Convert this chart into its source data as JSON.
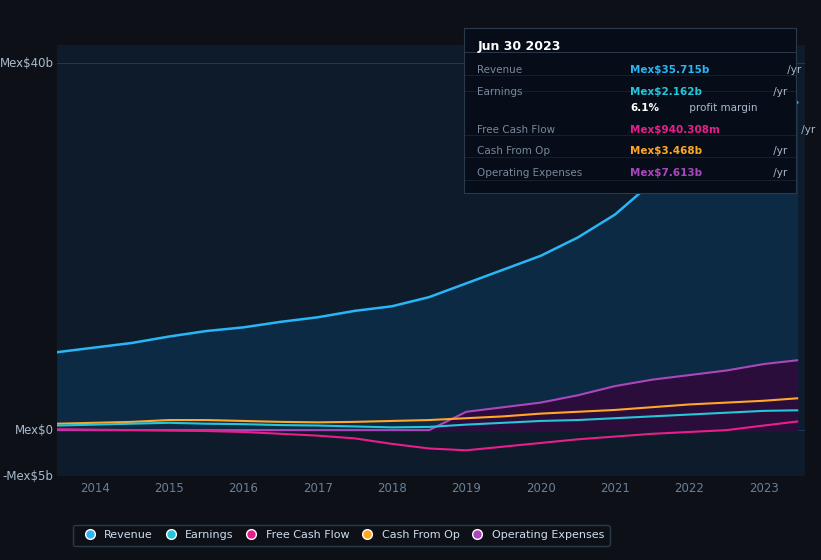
{
  "bg_color": "#0d1117",
  "plot_bg_color": "#0d1b2a",
  "years": [
    2013.5,
    2014.0,
    2014.5,
    2015.0,
    2015.5,
    2016.0,
    2016.5,
    2017.0,
    2017.5,
    2018.0,
    2018.5,
    2019.0,
    2019.5,
    2020.0,
    2020.5,
    2021.0,
    2021.5,
    2022.0,
    2022.5,
    2023.0,
    2023.45
  ],
  "revenue": [
    8.5,
    9.0,
    9.5,
    10.2,
    10.8,
    11.2,
    11.8,
    12.3,
    13.0,
    13.5,
    14.5,
    16.0,
    17.5,
    19.0,
    21.0,
    23.5,
    27.0,
    30.0,
    33.0,
    35.0,
    35.715
  ],
  "earnings": [
    0.5,
    0.6,
    0.7,
    0.8,
    0.7,
    0.65,
    0.55,
    0.5,
    0.4,
    0.3,
    0.35,
    0.6,
    0.8,
    1.0,
    1.1,
    1.3,
    1.5,
    1.7,
    1.9,
    2.1,
    2.162
  ],
  "free_cash_flow": [
    0.1,
    0.05,
    0.0,
    -0.05,
    -0.1,
    -0.2,
    -0.4,
    -0.6,
    -0.9,
    -1.5,
    -2.0,
    -2.2,
    -1.8,
    -1.4,
    -1.0,
    -0.7,
    -0.4,
    -0.2,
    0.0,
    0.5,
    0.94
  ],
  "cash_from_op": [
    0.7,
    0.8,
    0.9,
    1.1,
    1.1,
    1.0,
    0.9,
    0.85,
    0.9,
    1.0,
    1.1,
    1.3,
    1.5,
    1.8,
    2.0,
    2.2,
    2.5,
    2.8,
    3.0,
    3.2,
    3.468
  ],
  "operating_exp": [
    0.0,
    0.0,
    0.0,
    0.0,
    0.0,
    0.0,
    0.0,
    0.0,
    0.0,
    0.0,
    0.0,
    2.0,
    2.5,
    3.0,
    3.8,
    4.8,
    5.5,
    6.0,
    6.5,
    7.2,
    7.613
  ],
  "revenue_color": "#29b6f6",
  "earnings_color": "#26c6da",
  "free_cash_flow_color": "#e91e8c",
  "cash_from_op_color": "#ffa726",
  "operating_exp_color": "#ab47bc",
  "revenue_fill": "#0d2a45",
  "operating_exp_fill": "#2a0d3a",
  "ylim": [
    -5,
    42
  ],
  "xticks": [
    2014,
    2015,
    2016,
    2017,
    2018,
    2019,
    2020,
    2021,
    2022,
    2023
  ],
  "legend_labels": [
    "Revenue",
    "Earnings",
    "Free Cash Flow",
    "Cash From Op",
    "Operating Expenses"
  ],
  "legend_colors": [
    "#29b6f6",
    "#26c6da",
    "#e91e8c",
    "#ffa726",
    "#ab47bc"
  ],
  "info_title": "Jun 30 2023",
  "info_rows": [
    {
      "label": "Revenue",
      "value": "Mex$35.715b",
      "suffix": "/yr",
      "color": "#29b6f6"
    },
    {
      "label": "Earnings",
      "value": "Mex$2.162b",
      "suffix": "/yr",
      "color": "#26c6da"
    },
    {
      "label": "",
      "value": "6.1%",
      "suffix": " profit margin",
      "color": "#ffffff"
    },
    {
      "label": "Free Cash Flow",
      "value": "Mex$940.308m",
      "suffix": "/yr",
      "color": "#e91e8c"
    },
    {
      "label": "Cash From Op",
      "value": "Mex$3.468b",
      "suffix": "/yr",
      "color": "#ffa726"
    },
    {
      "label": "Operating Expenses",
      "value": "Mex$7.613b",
      "suffix": "/yr",
      "color": "#ab47bc"
    }
  ]
}
